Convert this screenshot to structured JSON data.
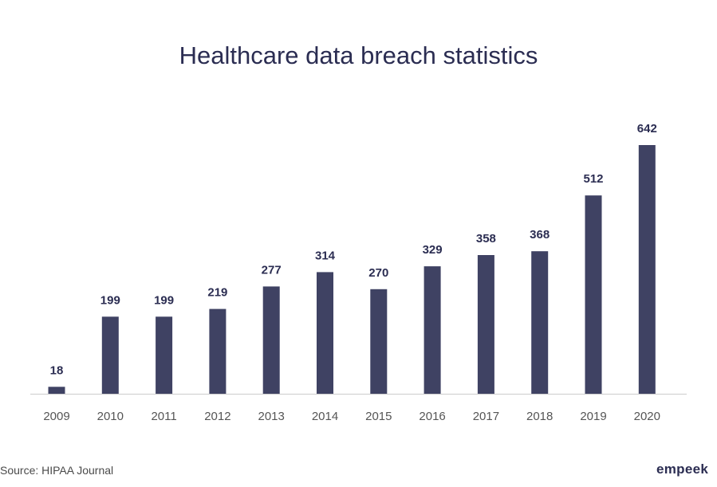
{
  "header": {
    "title": "Healthcare data breach statistics"
  },
  "footer": {
    "source": "Source: HIPAA Journal",
    "logo": "empeek"
  },
  "colors": {
    "bar": "#3f4263",
    "title": "#2b2d52",
    "value_label": "#2b2d52",
    "tick_label": "#555555",
    "axis": "#cccccc"
  },
  "chart_data": {
    "type": "bar",
    "title": "Healthcare data breach statistics",
    "xlabel": "",
    "ylabel": "",
    "categories": [
      "2009",
      "2010",
      "2011",
      "2012",
      "2013",
      "2014",
      "2015",
      "2016",
      "2017",
      "2018",
      "2019",
      "2020"
    ],
    "values": [
      18,
      199,
      199,
      219,
      277,
      314,
      270,
      329,
      358,
      368,
      512,
      642
    ],
    "value_labels": true,
    "grid": false,
    "legend": "none"
  }
}
